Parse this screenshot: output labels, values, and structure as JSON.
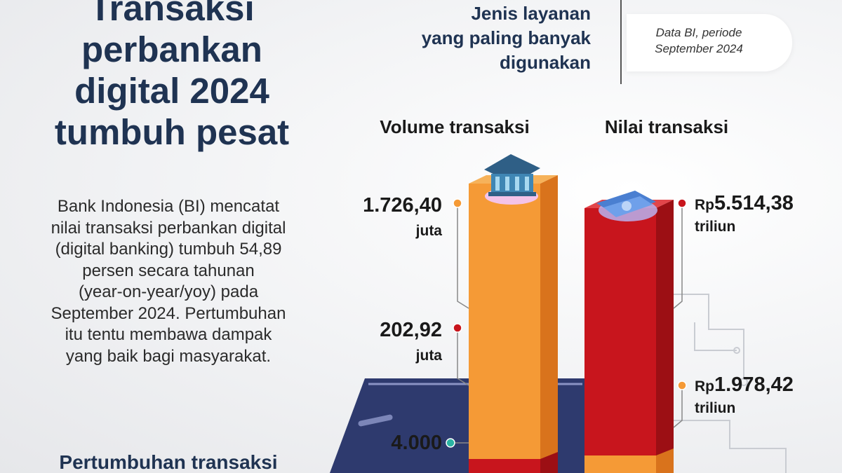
{
  "header": {
    "title_lines": [
      "Transaksi",
      "perbankan",
      "digital 2024",
      "tumbuh pesat"
    ]
  },
  "body": {
    "lines": [
      "Bank Indonesia (BI) mencatat",
      "nilai transaksi perbankan digital",
      "(digital banking) tumbuh 54,89",
      "persen secara tahunan",
      "(year-on-year/yoy) pada",
      "September 2024. Pertumbuhan",
      "itu tentu membawa dampak",
      "yang baik bagi masyarakat."
    ],
    "subheading": "Pertumbuhan transaksi"
  },
  "service": {
    "lines": [
      "Jenis layanan",
      "yang paling banyak",
      "digunakan"
    ]
  },
  "source": {
    "lines": [
      "Data BI, periode",
      "September 2024"
    ]
  },
  "columns": [
    {
      "heading": "Volume transaksi",
      "items": [
        {
          "value": "1.726,40",
          "unit": "juta"
        },
        {
          "value": "202,92",
          "unit": "juta"
        },
        {
          "value": "4.000"
        }
      ]
    },
    {
      "heading": "Nilai transaksi",
      "items": [
        {
          "prefix": "Rp",
          "value": "5.514,38",
          "unit": "triliun"
        },
        {
          "prefix": "Rp",
          "value": "1.978,42",
          "unit": "triliun"
        }
      ]
    }
  ]
}
